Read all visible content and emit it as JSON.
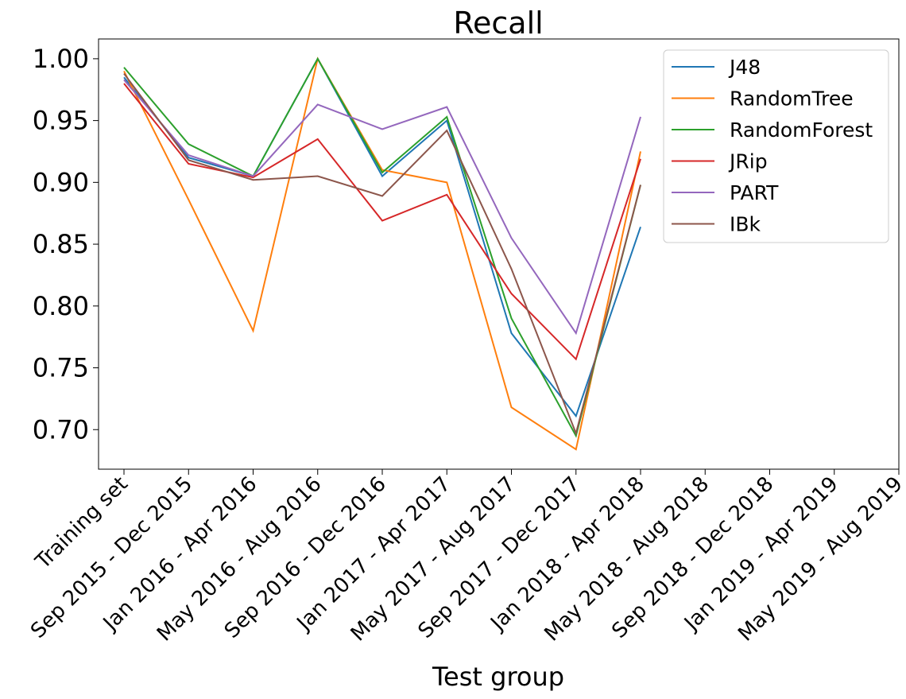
{
  "chart_data": {
    "type": "line",
    "title": "Recall",
    "x_label": "Test group",
    "categories": [
      "Training set",
      "Sep 2015 - Dec 2015",
      "Jan 2016 - Apr 2016",
      "May 2016 - Aug 2016",
      "Sep 2016 - Dec 2016",
      "Jan 2017 - Apr 2017",
      "May 2017 - Aug 2017",
      "Sep 2017 - Dec 2017",
      "Jan 2018 - Apr 2018",
      "May 2018 - Aug 2018",
      "Sep 2018 - Dec 2018",
      "Jan 2019 - Apr 2019",
      "May 2019 - Aug 2019"
    ],
    "series": [
      {
        "name": "J48",
        "color": "#1f77b4",
        "values": [
          0.985,
          0.92,
          0.905,
          1.0,
          0.905,
          0.95,
          0.778,
          0.711,
          0.864,
          null,
          null,
          null,
          null
        ]
      },
      {
        "name": "RandomTree",
        "color": "#ff7f0e",
        "values": [
          0.99,
          0.886,
          0.78,
          1.0,
          0.91,
          0.9,
          0.718,
          0.684,
          0.925,
          null,
          null,
          null,
          null
        ]
      },
      {
        "name": "RandomForest",
        "color": "#2ca02c",
        "values": [
          0.993,
          0.931,
          0.905,
          1.0,
          0.908,
          0.953,
          0.79,
          0.695,
          0.898,
          null,
          null,
          null,
          null
        ]
      },
      {
        "name": "JRip",
        "color": "#d62728",
        "values": [
          0.98,
          0.915,
          0.904,
          0.935,
          0.869,
          0.89,
          0.81,
          0.757,
          0.919,
          null,
          null,
          null,
          null
        ]
      },
      {
        "name": "PART",
        "color": "#9467bd",
        "values": [
          0.983,
          0.922,
          0.905,
          0.963,
          0.943,
          0.961,
          0.855,
          0.778,
          0.953,
          null,
          null,
          null,
          null
        ]
      },
      {
        "name": "IBk",
        "color": "#8c564b",
        "values": [
          0.988,
          0.918,
          0.902,
          0.905,
          0.889,
          0.942,
          0.83,
          0.697,
          0.898,
          null,
          null,
          null,
          null
        ]
      }
    ],
    "ylim": [
      0.668,
      1.016
    ],
    "yticks": [
      {
        "value": 0.7,
        "label": "0.70"
      },
      {
        "value": 0.75,
        "label": "0.75"
      },
      {
        "value": 0.8,
        "label": "0.80"
      },
      {
        "value": 0.85,
        "label": "0.85"
      },
      {
        "value": 0.9,
        "label": "0.90"
      },
      {
        "value": 0.95,
        "label": "0.95"
      },
      {
        "value": 1.0,
        "label": "1.00"
      }
    ],
    "legend": "upper right"
  }
}
